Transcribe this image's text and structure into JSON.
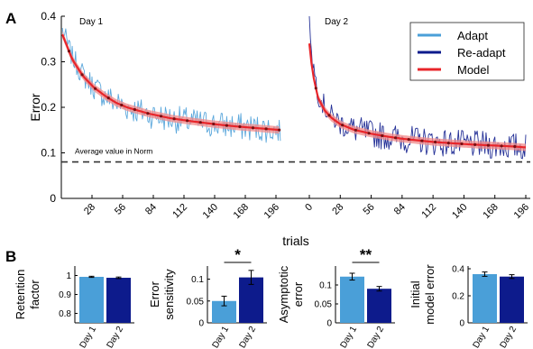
{
  "panel_labels": {
    "a": "A",
    "b": "B"
  },
  "chart_data": [
    {
      "type": "line",
      "panel": "A",
      "xlabel": "trials",
      "ylabel": "Error",
      "ylim": [
        0,
        0.4
      ],
      "yticks": [
        "0",
        "0.1",
        "0.2",
        "0.3",
        "0.4"
      ],
      "reference_line": {
        "label": "Average value in Norm",
        "value": 0.08,
        "style": "dashed"
      },
      "legend": {
        "placement": "top-right",
        "entries": [
          "Adapt",
          "Re-adapt",
          "Model"
        ]
      },
      "days": [
        {
          "label": "Day 1",
          "xlim": [
            0,
            210
          ],
          "xticks": [
            "28",
            "56",
            "84",
            "112",
            "140",
            "168",
            "196"
          ],
          "series": [
            {
              "name": "Adapt",
              "color": "#4a9fd8",
              "x": [
                1,
                10,
                20,
                30,
                40,
                50,
                60,
                80,
                100,
                120,
                140,
                160,
                180,
                200
              ],
              "values": [
                0.37,
                0.31,
                0.27,
                0.245,
                0.225,
                0.21,
                0.2,
                0.185,
                0.175,
                0.168,
                0.163,
                0.158,
                0.154,
                0.15
              ]
            },
            {
              "name": "Model",
              "color": "#e8252a",
              "x": [
                1,
                10,
                20,
                30,
                40,
                50,
                60,
                80,
                100,
                120,
                140,
                160,
                180,
                200
              ],
              "values": [
                0.36,
                0.305,
                0.268,
                0.243,
                0.225,
                0.21,
                0.2,
                0.186,
                0.176,
                0.169,
                0.163,
                0.158,
                0.154,
                0.15
              ]
            }
          ]
        },
        {
          "label": "Day 2",
          "xlim": [
            0,
            196
          ],
          "xticks": [
            "0",
            "28",
            "56",
            "84",
            "112",
            "140",
            "168",
            "196"
          ],
          "series": [
            {
              "name": "Re-adapt",
              "color": "#0d1b8c",
              "x": [
                0,
                3,
                8,
                14,
                20,
                28,
                40,
                56,
                70,
                84,
                100,
                112,
                130,
                150,
                168,
                185,
                196
              ],
              "values": [
                0.4,
                0.3,
                0.23,
                0.2,
                0.18,
                0.165,
                0.152,
                0.142,
                0.136,
                0.131,
                0.127,
                0.124,
                0.121,
                0.118,
                0.116,
                0.114,
                0.112
              ]
            },
            {
              "name": "Model",
              "color": "#e8252a",
              "x": [
                0,
                3,
                8,
                14,
                20,
                28,
                40,
                56,
                70,
                84,
                100,
                112,
                130,
                150,
                168,
                185,
                196
              ],
              "values": [
                0.34,
                0.275,
                0.22,
                0.193,
                0.177,
                0.163,
                0.151,
                0.142,
                0.136,
                0.131,
                0.127,
                0.124,
                0.121,
                0.118,
                0.116,
                0.114,
                0.112
              ]
            }
          ]
        }
      ]
    },
    {
      "type": "bar",
      "panel": "B",
      "ylabel": "Retention factor",
      "ylim": [
        0.75,
        1.05
      ],
      "yticks": [
        "0.8",
        "0.9",
        "1"
      ],
      "categories": [
        "Day 1",
        "Day 2"
      ],
      "values": [
        0.993,
        0.988
      ],
      "errors": [
        0.003,
        0.004
      ],
      "colors": [
        "#4a9fd8",
        "#0d1b8c"
      ]
    },
    {
      "type": "bar",
      "panel": "B",
      "ylabel": "Error sensitivity",
      "ylim": [
        0,
        0.13
      ],
      "yticks": [
        "0",
        "0.05",
        "0.1"
      ],
      "categories": [
        "Day 1",
        "Day 2"
      ],
      "values": [
        0.05,
        0.104
      ],
      "errors": [
        0.011,
        0.016
      ],
      "colors": [
        "#4a9fd8",
        "#0d1b8c"
      ],
      "significance": "*"
    },
    {
      "type": "bar",
      "panel": "B",
      "ylabel": "Asymptotic error",
      "ylim": [
        0,
        0.15
      ],
      "yticks": [
        "0",
        "0.05",
        "0.1"
      ],
      "categories": [
        "Day 1",
        "Day 2"
      ],
      "values": [
        0.122,
        0.09
      ],
      "errors": [
        0.009,
        0.006
      ],
      "colors": [
        "#4a9fd8",
        "#0d1b8c"
      ],
      "significance": "**"
    },
    {
      "type": "bar",
      "panel": "B",
      "ylabel": "Initial model error",
      "ylim": [
        0,
        0.42
      ],
      "yticks": [
        "0",
        "0.2",
        "0.4"
      ],
      "categories": [
        "Day 1",
        "Day 2"
      ],
      "values": [
        0.36,
        0.342
      ],
      "errors": [
        0.016,
        0.014
      ],
      "colors": [
        "#4a9fd8",
        "#0d1b8c"
      ]
    }
  ]
}
